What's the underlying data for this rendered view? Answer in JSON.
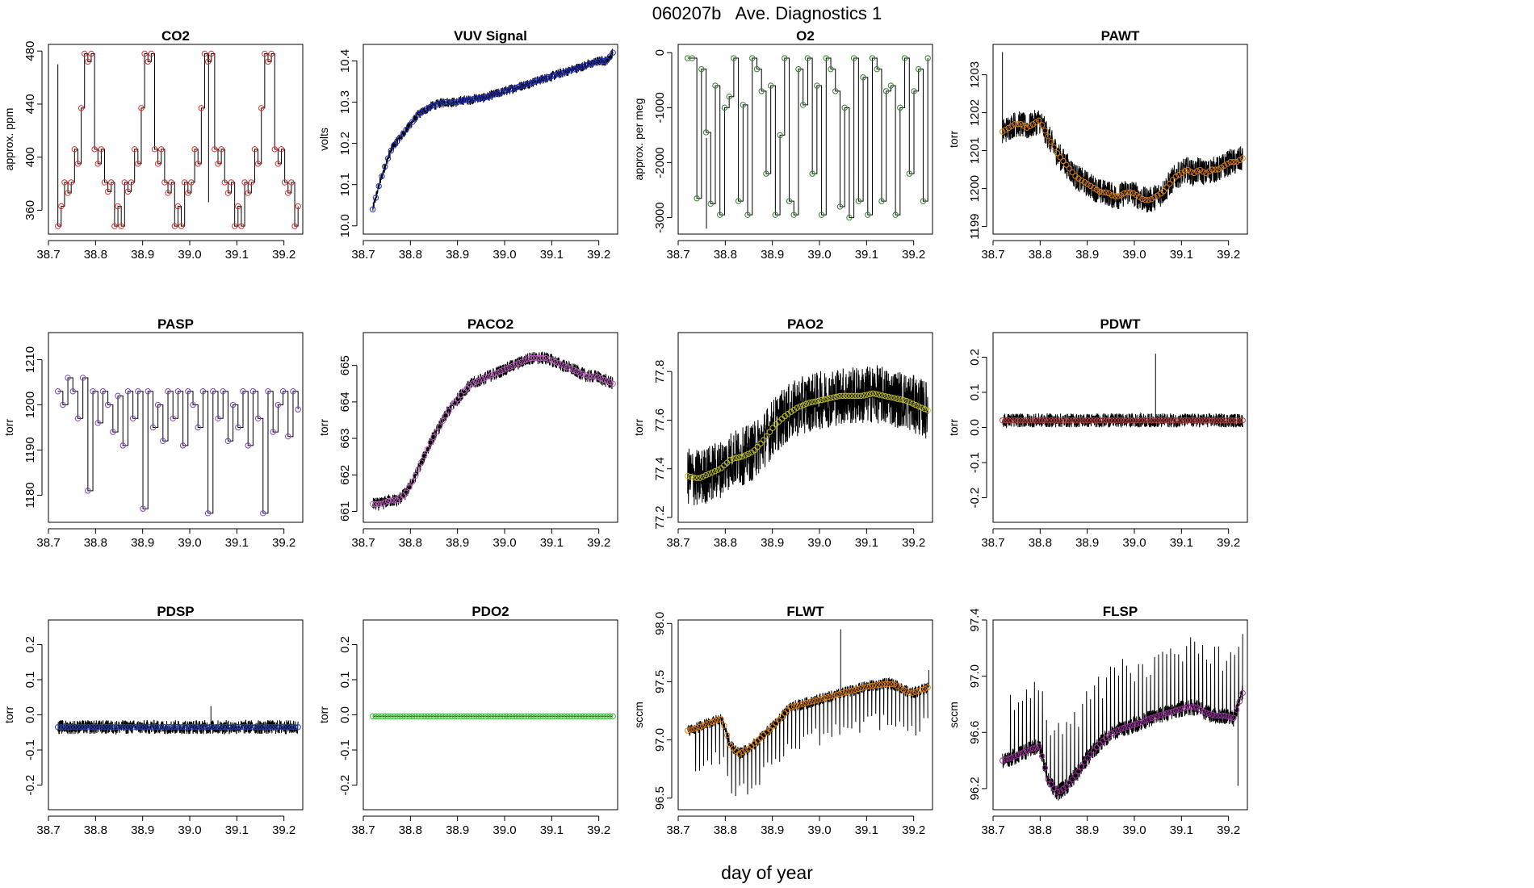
{
  "figure": {
    "title": "060207b   Ave. Diagnostics 1",
    "xlabel": "day of year"
  },
  "chart_data": [
    {
      "type": "line",
      "title": "CO2",
      "ylabel": "approx. ppm",
      "xlim": [
        38.7,
        39.24
      ],
      "ylim": [
        342,
        485
      ],
      "xticks": [
        38.7,
        38.8,
        38.9,
        39.0,
        39.1,
        39.2
      ],
      "xtick_labels": [
        "38.7",
        "38.8",
        "38.9",
        "39.0",
        "39.1",
        "39.2"
      ],
      "yticks": [
        360,
        400,
        440,
        480
      ],
      "ytick_labels": [
        "360",
        "400",
        "440",
        "480"
      ],
      "point_color": "#e03030",
      "trace_color": "#000000",
      "style": "step",
      "series": {
        "x_start": 38.72,
        "x_end": 39.23,
        "y": [
          348,
          363,
          381,
          373,
          381,
          406,
          395,
          437,
          478,
          472,
          478,
          406,
          395,
          406,
          381,
          374,
          381,
          348,
          363,
          348,
          381,
          374,
          381,
          406,
          395,
          437,
          478,
          472,
          478,
          406,
          395,
          406,
          381,
          373,
          381,
          348,
          363,
          348,
          381,
          373,
          381,
          406,
          395,
          437,
          478,
          472,
          478,
          406,
          395,
          406,
          381,
          373,
          381,
          348,
          363,
          348,
          381,
          373,
          381,
          406,
          395,
          437,
          478,
          472,
          478,
          406,
          395,
          406,
          381,
          373,
          381,
          348,
          363
        ]
      },
      "spikes": [
        {
          "x": 38.72,
          "y": 470
        },
        {
          "x": 39.04,
          "y": 478
        },
        {
          "x": 39.04,
          "y": 366
        }
      ]
    },
    {
      "type": "line",
      "title": "VUV Signal",
      "ylabel": "volts",
      "xlim": [
        38.7,
        39.24
      ],
      "ylim": [
        9.98,
        10.44
      ],
      "xticks": [
        38.7,
        38.8,
        38.9,
        39.0,
        39.1,
        39.2
      ],
      "xtick_labels": [
        "38.7",
        "38.8",
        "38.9",
        "39.0",
        "39.1",
        "39.2"
      ],
      "yticks": [
        10.0,
        10.1,
        10.2,
        10.3,
        10.4
      ],
      "ytick_labels": [
        "10.0",
        "10.1",
        "10.2",
        "10.3",
        "10.4"
      ],
      "point_color": "#2030c0",
      "trace_color": "#000000",
      "style": "noisy",
      "series": {
        "x_start": 38.72,
        "x_end": 39.23,
        "y": [
          10.04,
          10.1,
          10.15,
          10.19,
          10.21,
          10.23,
          10.25,
          10.27,
          10.28,
          10.29,
          10.295,
          10.3,
          10.3,
          10.3,
          10.305,
          10.305,
          10.31,
          10.31,
          10.315,
          10.32,
          10.325,
          10.33,
          10.335,
          10.34,
          10.345,
          10.35,
          10.355,
          10.36,
          10.365,
          10.37,
          10.375,
          10.38,
          10.385,
          10.39,
          10.395,
          10.4,
          10.4,
          10.42
        ]
      },
      "noise": 0.012
    },
    {
      "type": "line",
      "title": "O2",
      "ylabel": "approx. per meg",
      "xlim": [
        38.7,
        39.24
      ],
      "ylim": [
        -3300,
        150
      ],
      "xticks": [
        38.7,
        38.8,
        38.9,
        39.0,
        39.1,
        39.2
      ],
      "xtick_labels": [
        "38.7",
        "38.8",
        "38.9",
        "39.0",
        "39.1",
        "39.2"
      ],
      "yticks": [
        -3000,
        -2000,
        -1000,
        0
      ],
      "ytick_labels": [
        "-3000",
        "-2000",
        "-1000",
        "0"
      ],
      "point_color": "#308030",
      "trace_color": "#000000",
      "style": "step",
      "series": {
        "x_start": 38.72,
        "x_end": 39.23,
        "y": [
          -100,
          -100,
          -2650,
          -300,
          -1450,
          -2750,
          -600,
          -2950,
          -1000,
          -800,
          -100,
          -2700,
          -950,
          -2950,
          -100,
          -300,
          -700,
          -2200,
          -600,
          -2950,
          -1500,
          -100,
          -2700,
          -2950,
          -300,
          -950,
          -100,
          -2200,
          -600,
          -2950,
          -100,
          -300,
          -700,
          -2800,
          -1000,
          -3000,
          -100,
          -2700,
          -450,
          -2950,
          -100,
          -300,
          -2700,
          -700,
          -600,
          -2950,
          -1000,
          -100,
          -2200,
          -700,
          -300,
          -2700,
          -100
        ]
      },
      "spikes": [
        {
          "x": 38.76,
          "y": -3200
        }
      ]
    },
    {
      "type": "line",
      "title": "PAWT",
      "ylabel": "torr",
      "xlim": [
        38.7,
        39.24
      ],
      "ylim": [
        1198.8,
        1203.8
      ],
      "xticks": [
        38.7,
        38.8,
        38.9,
        39.0,
        39.1,
        39.2
      ],
      "xtick_labels": [
        "38.7",
        "38.8",
        "38.9",
        "39.0",
        "39.1",
        "39.2"
      ],
      "yticks": [
        1199,
        1200,
        1201,
        1202,
        1203
      ],
      "ytick_labels": [
        "1199",
        "1200",
        "1201",
        "1202",
        "1203"
      ],
      "point_color": "#e08010",
      "trace_color": "#000000",
      "style": "noisy",
      "series": {
        "x_start": 38.72,
        "x_end": 39.23,
        "y": [
          1201.5,
          1201.6,
          1201.7,
          1201.7,
          1201.6,
          1201.7,
          1201.8,
          1201.5,
          1201.2,
          1200.9,
          1200.7,
          1200.5,
          1200.3,
          1200.2,
          1200.1,
          1200.0,
          1199.9,
          1199.9,
          1199.8,
          1199.8,
          1199.9,
          1199.9,
          1199.8,
          1199.7,
          1199.7,
          1199.8,
          1199.9,
          1200.1,
          1200.3,
          1200.4,
          1200.5,
          1200.4,
          1200.5,
          1200.4,
          1200.5,
          1200.5,
          1200.6,
          1200.7,
          1200.7,
          1200.8
        ]
      },
      "noise": 0.35,
      "spikes": [
        {
          "x": 38.72,
          "y": 1203.6
        }
      ]
    },
    {
      "type": "line",
      "title": "PASP",
      "ylabel": "torr",
      "xlim": [
        38.7,
        39.24
      ],
      "ylim": [
        1174,
        1216
      ],
      "xticks": [
        38.7,
        38.8,
        38.9,
        39.0,
        39.1,
        39.2
      ],
      "xtick_labels": [
        "38.7",
        "38.8",
        "38.9",
        "39.0",
        "39.1",
        "39.2"
      ],
      "yticks": [
        1180,
        1190,
        1200,
        1210
      ],
      "ytick_labels": [
        "1180",
        "1190",
        "1200",
        "1210"
      ],
      "point_color": "#8040c0",
      "trace_color": "#000000",
      "style": "step",
      "series": {
        "x_start": 38.72,
        "x_end": 39.23,
        "y": [
          1203,
          1200,
          1206,
          1203,
          1197,
          1206,
          1181,
          1203,
          1196,
          1203,
          1200,
          1194,
          1202,
          1191,
          1203,
          1197,
          1203,
          1177,
          1203,
          1195,
          1200,
          1192,
          1203,
          1197,
          1203,
          1191,
          1203,
          1200,
          1195,
          1203,
          1176,
          1203,
          1197,
          1203,
          1192,
          1200,
          1195,
          1203,
          1191,
          1203,
          1197,
          1176,
          1203,
          1194,
          1200,
          1203,
          1193,
          1203,
          1199
        ]
      }
    },
    {
      "type": "line",
      "title": "PACO2",
      "ylabel": "torr",
      "xlim": [
        38.7,
        39.24
      ],
      "ylim": [
        660.7,
        665.9
      ],
      "xticks": [
        38.7,
        38.8,
        38.9,
        39.0,
        39.1,
        39.2
      ],
      "xtick_labels": [
        "38.7",
        "38.8",
        "38.9",
        "39.0",
        "39.1",
        "39.2"
      ],
      "yticks": [
        661,
        662,
        663,
        664,
        665
      ],
      "ytick_labels": [
        "661",
        "662",
        "663",
        "664",
        "665"
      ],
      "point_color": "#c060c0",
      "trace_color": "#000000",
      "style": "noisy",
      "series": {
        "x_start": 38.72,
        "x_end": 39.23,
        "y": [
          661.2,
          661.2,
          661.3,
          661.3,
          661.5,
          661.9,
          662.4,
          662.9,
          663.3,
          663.7,
          664.0,
          664.3,
          664.5,
          664.6,
          664.7,
          664.8,
          664.9,
          665.0,
          665.1,
          665.2,
          665.2,
          665.2,
          665.1,
          665.0,
          664.9,
          664.8,
          664.7,
          664.7,
          664.6,
          664.5
        ]
      },
      "noise": 0.18
    },
    {
      "type": "line",
      "title": "PAO2",
      "ylabel": "torr",
      "xlim": [
        38.7,
        39.24
      ],
      "ylim": [
        77.18,
        77.96
      ],
      "xticks": [
        38.7,
        38.8,
        38.9,
        39.0,
        39.1,
        39.2
      ],
      "xtick_labels": [
        "38.7",
        "38.8",
        "38.9",
        "39.0",
        "39.1",
        "39.2"
      ],
      "yticks": [
        77.2,
        77.4,
        77.6,
        77.8
      ],
      "ytick_labels": [
        "77.2",
        "77.4",
        "77.6",
        "77.8"
      ],
      "point_color": "#c0c020",
      "trace_color": "#000000",
      "style": "noisy",
      "series": {
        "x_start": 38.72,
        "x_end": 39.23,
        "y": [
          77.37,
          77.36,
          77.38,
          77.4,
          77.44,
          77.45,
          77.47,
          77.52,
          77.58,
          77.62,
          77.65,
          77.67,
          77.68,
          77.69,
          77.7,
          77.7,
          77.7,
          77.71,
          77.7,
          77.69,
          77.68,
          77.66,
          77.64
        ]
      },
      "noise": 0.12
    },
    {
      "type": "line",
      "title": "PDWT",
      "ylabel": "torr",
      "xlim": [
        38.7,
        39.24
      ],
      "ylim": [
        -0.27,
        0.27
      ],
      "xticks": [
        38.7,
        38.8,
        38.9,
        39.0,
        39.1,
        39.2
      ],
      "xtick_labels": [
        "38.7",
        "38.8",
        "38.9",
        "39.0",
        "39.1",
        "39.2"
      ],
      "yticks": [
        -0.2,
        -0.1,
        0.0,
        0.1,
        0.2
      ],
      "ytick_labels": [
        "-0.2",
        "-0.1",
        "0.0",
        "0.1",
        "0.2"
      ],
      "point_color": "#c04040",
      "trace_color": "#000000",
      "style": "noisy",
      "series": {
        "x_start": 38.72,
        "x_end": 39.23,
        "y": [
          0.02,
          0.02,
          0.02,
          0.02,
          0.02
        ]
      },
      "noise": 0.02,
      "spikes": [
        {
          "x": 39.045,
          "y": 0.21
        }
      ]
    },
    {
      "type": "line",
      "title": "PDSP",
      "ylabel": "torr",
      "xlim": [
        38.7,
        39.24
      ],
      "ylim": [
        -0.27,
        0.27
      ],
      "xticks": [
        38.7,
        38.8,
        38.9,
        39.0,
        39.1,
        39.2
      ],
      "xtick_labels": [
        "38.7",
        "38.8",
        "38.9",
        "39.0",
        "39.1",
        "39.2"
      ],
      "yticks": [
        -0.2,
        -0.1,
        0.0,
        0.1,
        0.2
      ],
      "ytick_labels": [
        "-0.2",
        "-0.1",
        "0.0",
        "0.1",
        "0.2"
      ],
      "point_color": "#2040c0",
      "trace_color": "#000000",
      "style": "noisy",
      "series": {
        "x_start": 38.72,
        "x_end": 39.23,
        "y": [
          -0.035,
          -0.035,
          -0.035,
          -0.035,
          -0.035
        ]
      },
      "noise": 0.02,
      "spikes": [
        {
          "x": 39.045,
          "y": 0.025
        }
      ]
    },
    {
      "type": "line",
      "title": "PDO2",
      "ylabel": "torr",
      "xlim": [
        38.7,
        39.24
      ],
      "ylim": [
        -0.27,
        0.27
      ],
      "xticks": [
        38.7,
        38.8,
        38.9,
        39.0,
        39.1,
        39.2
      ],
      "xtick_labels": [
        "38.7",
        "38.8",
        "38.9",
        "39.0",
        "39.1",
        "39.2"
      ],
      "yticks": [
        -0.2,
        -0.1,
        0.0,
        0.1,
        0.2
      ],
      "ytick_labels": [
        "-0.2",
        "-0.1",
        "0.0",
        "0.1",
        "0.2"
      ],
      "point_color": "#30c030",
      "trace_color": "#000000",
      "style": "flat",
      "series": {
        "x_start": 38.72,
        "x_end": 39.23,
        "y": [
          -0.004,
          -0.004,
          -0.004,
          -0.004,
          -0.004
        ]
      }
    },
    {
      "type": "line",
      "title": "FLWT",
      "ylabel": "sccm",
      "xlim": [
        38.7,
        39.24
      ],
      "ylim": [
        96.4,
        98.03
      ],
      "xticks": [
        38.7,
        38.8,
        38.9,
        39.0,
        39.1,
        39.2
      ],
      "xtick_labels": [
        "38.7",
        "38.8",
        "38.9",
        "39.0",
        "39.1",
        "39.2"
      ],
      "yticks": [
        96.5,
        97.0,
        97.5,
        98.0
      ],
      "ytick_labels": [
        "96.5",
        "97.0",
        "97.5",
        "98.0"
      ],
      "point_color": "#e08010",
      "trace_color": "#000000",
      "style": "noisy",
      "series": {
        "x_start": 38.72,
        "x_end": 39.23,
        "y": [
          97.08,
          97.1,
          97.13,
          97.16,
          97.18,
          96.95,
          96.88,
          96.92,
          96.98,
          97.05,
          97.12,
          97.2,
          97.28,
          97.3,
          97.32,
          97.34,
          97.36,
          97.38,
          97.4,
          97.42,
          97.44,
          97.46,
          97.47,
          97.48,
          97.48,
          97.44,
          97.4,
          97.42,
          97.45
        ]
      },
      "noise": 0.05,
      "down_spikes": 0.4,
      "spikes": [
        {
          "x": 39.045,
          "y": 97.95
        },
        {
          "x": 39.232,
          "y": 97.6
        }
      ]
    },
    {
      "type": "line",
      "title": "FLSP",
      "ylabel": "sccm",
      "xlim": [
        38.7,
        39.24
      ],
      "ylim": [
        96.05,
        97.4
      ],
      "xticks": [
        38.7,
        38.8,
        38.9,
        39.0,
        39.1,
        39.2
      ],
      "xtick_labels": [
        "38.7",
        "38.8",
        "38.9",
        "39.0",
        "39.1",
        "39.2"
      ],
      "yticks": [
        96.2,
        96.6,
        97.0,
        97.4
      ],
      "ytick_labels": [
        "96.2",
        "96.6",
        "97.0",
        "97.4"
      ],
      "point_color": "#a030a0",
      "trace_color": "#000000",
      "style": "noisy",
      "series": {
        "x_start": 38.72,
        "x_end": 39.23,
        "y": [
          96.4,
          96.42,
          96.45,
          96.48,
          96.5,
          96.25,
          96.17,
          96.22,
          96.3,
          96.4,
          96.48,
          96.55,
          96.6,
          96.63,
          96.65,
          96.67,
          96.7,
          96.72,
          96.74,
          96.76,
          96.78,
          96.78,
          96.74,
          96.72,
          96.72,
          96.7,
          96.88
        ]
      },
      "noise": 0.06,
      "up_spikes": 0.5,
      "spikes": [
        {
          "x": 39.22,
          "y": 96.22
        }
      ]
    }
  ]
}
